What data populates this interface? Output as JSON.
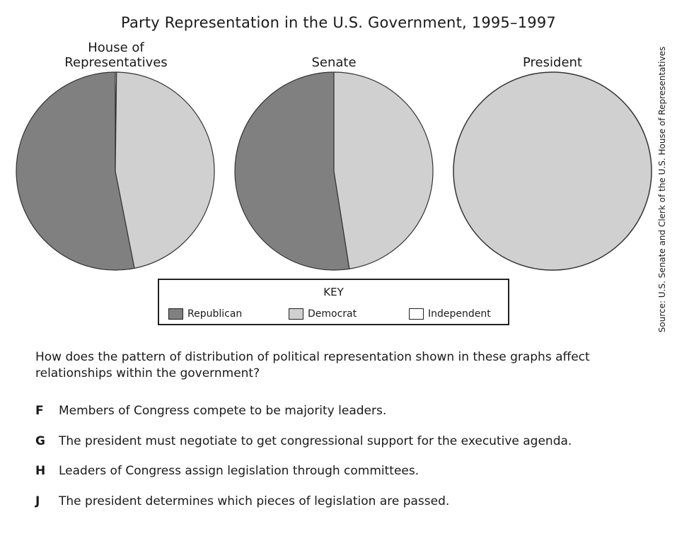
{
  "title": "Party Representation in the U.S. Government, 1995–1997",
  "source": "Source: U.S. Senate and Clerk of the U.S. House of Representatives",
  "colors": {
    "republican": "#808080",
    "democrat": "#d0d0d0",
    "independent": "#ffffff",
    "outline": "#333333"
  },
  "chart_data": [
    {
      "type": "pie",
      "title_lines": [
        "House of",
        "Representatives"
      ],
      "slices": [
        {
          "label": "Republican",
          "value": 53.1
        },
        {
          "label": "Independent",
          "value": 0.2
        },
        {
          "label": "Democrat",
          "value": 46.7
        }
      ]
    },
    {
      "type": "pie",
      "title_lines": [
        "Senate"
      ],
      "slices": [
        {
          "label": "Republican",
          "value": 52.5
        },
        {
          "label": "Independent",
          "value": 0
        },
        {
          "label": "Democrat",
          "value": 47.5
        }
      ]
    },
    {
      "type": "pie",
      "title_lines": [
        "President"
      ],
      "slices": [
        {
          "label": "Republican",
          "value": 0
        },
        {
          "label": "Independent",
          "value": 0
        },
        {
          "label": "Democrat",
          "value": 100
        }
      ]
    }
  ],
  "key": {
    "title": "KEY",
    "items": [
      {
        "label": "Republican"
      },
      {
        "label": "Democrat"
      },
      {
        "label": "Independent"
      }
    ]
  },
  "question": "How does the pattern of distribution of political representation shown in these graphs affect relationships within the government?",
  "options": [
    {
      "letter": "F",
      "text": "Members of Congress compete to be majority leaders."
    },
    {
      "letter": "G",
      "text": "The president must negotiate to get congressional support for the executive agenda."
    },
    {
      "letter": "H",
      "text": "Leaders of Congress assign legislation through committees."
    },
    {
      "letter": "J",
      "text": "The president determines which pieces of legislation are passed."
    }
  ]
}
